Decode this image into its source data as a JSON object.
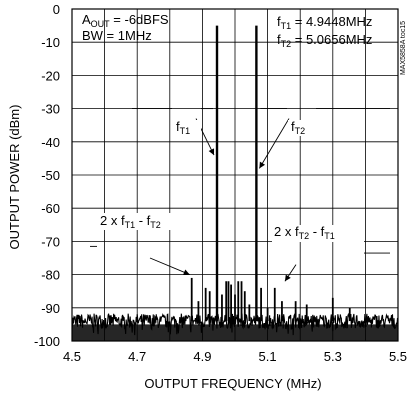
{
  "chart_data": {
    "type": "line",
    "title": "",
    "xlabel": "OUTPUT FREQUENCY (MHz)",
    "ylabel": "OUTPUT POWER (dBm)",
    "xlim": [
      4.5,
      5.5
    ],
    "ylim": [
      -100,
      0
    ],
    "x_ticks": [
      "4.5",
      "4.7",
      "4.9",
      "5.1",
      "5.3",
      "5.5"
    ],
    "y_ticks": [
      "0",
      "-10",
      "-20",
      "-30",
      "-40",
      "-50",
      "-60",
      "-70",
      "-80",
      "-90",
      "-100"
    ],
    "grid": true,
    "noise_floor_dbm": -94,
    "spurs": [
      {
        "x": 4.8672,
        "y": -81
      },
      {
        "x": 4.8878,
        "y": -88
      },
      {
        "x": 4.91,
        "y": -84
      },
      {
        "x": 4.9224,
        "y": -85
      },
      {
        "x": 4.9448,
        "y": -5
      },
      {
        "x": 4.96,
        "y": -86
      },
      {
        "x": 4.973,
        "y": -82
      },
      {
        "x": 4.98,
        "y": -82
      },
      {
        "x": 4.988,
        "y": -83
      },
      {
        "x": 5.0,
        "y": -86
      },
      {
        "x": 5.01,
        "y": -82
      },
      {
        "x": 5.02,
        "y": -82
      },
      {
        "x": 5.03,
        "y": -85
      },
      {
        "x": 5.044,
        "y": -89
      },
      {
        "x": 5.0656,
        "y": -5
      },
      {
        "x": 5.08,
        "y": -84
      },
      {
        "x": 5.1,
        "y": -90
      },
      {
        "x": 5.122,
        "y": -84
      },
      {
        "x": 5.144,
        "y": -88
      },
      {
        "x": 5.186,
        "y": -88
      },
      {
        "x": 5.22,
        "y": -89
      },
      {
        "x": 5.3,
        "y": -87
      },
      {
        "x": 5.352,
        "y": -90
      }
    ],
    "annotations": {
      "aout": {
        "main": "A",
        "sub": "OUT",
        "rest": " = -6dBFS"
      },
      "bw": "BW = 1MHz",
      "f1_value": {
        "main": "f",
        "sub": "T1",
        "rest": " = 4.9448MHz"
      },
      "f2_value": {
        "main": "f",
        "sub": "T2",
        "rest": " = 5.0656MHz"
      },
      "f1_label": {
        "main": "f",
        "sub": "T1"
      },
      "f2_label": {
        "main": "f",
        "sub": "T2"
      },
      "imd_left": {
        "a": "2 x f",
        "a_sub": "T1",
        "b": " - f",
        "b_sub": "T2"
      },
      "imd_right": {
        "a": "2 x f",
        "a_sub": "T2",
        "b": " - f",
        "b_sub": "T1"
      }
    },
    "figure_id": "MAX5858A toc15"
  }
}
